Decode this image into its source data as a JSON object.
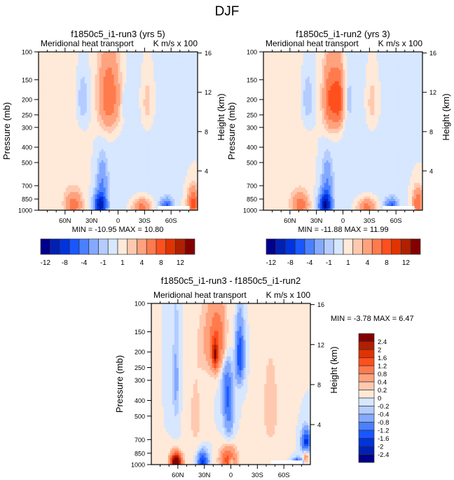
{
  "figure_title": "DJF",
  "chart_data": [
    {
      "type": "heatmap",
      "id": "run3",
      "title": "f1850c5_i1-run3 (yrs 5)",
      "left_label": "Meridional heat transport",
      "right_label": "K m/s x 100",
      "ylabel": "Pressure (mb)",
      "ylabel_right": "Height (km)",
      "x_ticks": [
        "60N",
        "30N",
        "0",
        "30S",
        "60S"
      ],
      "x_tick_values": [
        60,
        30,
        0,
        -30,
        -60
      ],
      "xlim": [
        90,
        -90
      ],
      "y_ticks": [
        "100",
        "150",
        "200",
        "250",
        "300",
        "400",
        "500",
        "700",
        "850",
        "1000"
      ],
      "y_tick_values": [
        100,
        150,
        200,
        250,
        300,
        400,
        500,
        700,
        850,
        1000
      ],
      "ylim": [
        1000,
        100
      ],
      "y_right_ticks": [
        "4",
        "8",
        "12",
        "16"
      ],
      "stats": "MIN = -10.95  MAX =  10.80",
      "min": -10.95,
      "max": 10.8,
      "colorbar": {
        "orientation": "horizontal",
        "labels": [
          "-12",
          "-8",
          "-4",
          "-1",
          "1",
          "4",
          "8",
          "12"
        ],
        "levels": [
          -12,
          -10,
          -8,
          -6,
          -4,
          -2,
          -1,
          0,
          1,
          2,
          4,
          6,
          8,
          10,
          12
        ]
      },
      "features": [
        {
          "lat": 10,
          "p": 190,
          "value": 6,
          "wlat": 12,
          "wp": 110
        },
        {
          "lat": 40,
          "p": 200,
          "value": -2,
          "wlat": 7,
          "wp": 80
        },
        {
          "lat": -33,
          "p": 210,
          "value": 1.8,
          "wlat": 7,
          "wp": 90
        },
        {
          "lat": -7,
          "p": 210,
          "value": -1.5,
          "wlat": 2.5,
          "wp": 40
        },
        {
          "lat": 20,
          "p": 930,
          "value": -11,
          "wlat": 7,
          "wp": 160
        },
        {
          "lat": 18,
          "p": 650,
          "value": -3.5,
          "wlat": 6,
          "wp": 200
        },
        {
          "lat": 50,
          "p": 930,
          "value": 5,
          "wlat": 9,
          "wp": 160
        },
        {
          "lat": -27,
          "p": 960,
          "value": 5,
          "wlat": 10,
          "wp": 120
        },
        {
          "lat": -55,
          "p": 960,
          "value": -7,
          "wlat": 7,
          "wp": 110
        },
        {
          "lat": -85,
          "p": 900,
          "value": 7,
          "wlat": 6,
          "wp": 180
        },
        {
          "lat": 60,
          "p": 450,
          "value": 0.7,
          "wlat": 25,
          "wp": 600
        },
        {
          "lat": -20,
          "p": 500,
          "value": -0.6,
          "wlat": 40,
          "wp": 500
        }
      ]
    },
    {
      "type": "heatmap",
      "id": "run2",
      "title": "f1850c5_i1-run2 (yrs 3)",
      "left_label": "Meridional heat transport",
      "right_label": "K m/s x 100",
      "ylabel": "Pressure (mb)",
      "ylabel_right": "Height (km)",
      "x_ticks": [
        "60N",
        "30N",
        "0",
        "30S",
        "60S"
      ],
      "x_tick_values": [
        60,
        30,
        0,
        -30,
        -60
      ],
      "xlim": [
        90,
        -90
      ],
      "y_ticks": [
        "100",
        "150",
        "200",
        "250",
        "300",
        "400",
        "500",
        "700",
        "850",
        "1000"
      ],
      "y_tick_values": [
        100,
        150,
        200,
        250,
        300,
        400,
        500,
        700,
        850,
        1000
      ],
      "ylim": [
        1000,
        100
      ],
      "y_right_ticks": [
        "4",
        "8",
        "12",
        "16"
      ],
      "stats": "MIN = -11.88  MAX =  11.99",
      "min": -11.88,
      "max": 11.99,
      "colorbar": {
        "orientation": "horizontal",
        "labels": [
          "-12",
          "-8",
          "-4",
          "-1",
          "1",
          "4",
          "8",
          "12"
        ],
        "levels": [
          -12,
          -10,
          -8,
          -6,
          -4,
          -2,
          -1,
          0,
          1,
          2,
          4,
          6,
          8,
          10,
          12
        ]
      },
      "features": [
        {
          "lat": 13,
          "p": 200,
          "value": 7,
          "wlat": 9,
          "wp": 100
        },
        {
          "lat": 4,
          "p": 200,
          "value": 5,
          "wlat": 5,
          "wp": 90
        },
        {
          "lat": 40,
          "p": 200,
          "value": -2,
          "wlat": 7,
          "wp": 80
        },
        {
          "lat": -33,
          "p": 210,
          "value": 1.8,
          "wlat": 7,
          "wp": 90
        },
        {
          "lat": -7,
          "p": 200,
          "value": -1.5,
          "wlat": 2.5,
          "wp": 50
        },
        {
          "lat": 20,
          "p": 930,
          "value": -12,
          "wlat": 7,
          "wp": 160
        },
        {
          "lat": 18,
          "p": 650,
          "value": -3.5,
          "wlat": 6,
          "wp": 200
        },
        {
          "lat": 48,
          "p": 930,
          "value": 5,
          "wlat": 9,
          "wp": 150
        },
        {
          "lat": -27,
          "p": 960,
          "value": 5,
          "wlat": 10,
          "wp": 120
        },
        {
          "lat": -55,
          "p": 960,
          "value": -7,
          "wlat": 7,
          "wp": 110
        },
        {
          "lat": -85,
          "p": 900,
          "value": 6,
          "wlat": 6,
          "wp": 180
        },
        {
          "lat": 60,
          "p": 450,
          "value": 0.7,
          "wlat": 25,
          "wp": 600
        },
        {
          "lat": -20,
          "p": 500,
          "value": -0.6,
          "wlat": 40,
          "wp": 500
        }
      ]
    },
    {
      "type": "heatmap",
      "id": "diff",
      "title": "f1850c5_i1-run3 - f1850c5_i1-run2",
      "left_label": "Meridional heat transport",
      "right_label": "K m/s x 100",
      "ylabel": "Pressure (mb)",
      "ylabel_right": "Height (km)",
      "x_ticks": [
        "60N",
        "30N",
        "0",
        "30S",
        "60S"
      ],
      "x_tick_values": [
        60,
        30,
        0,
        -30,
        -60
      ],
      "xlim": [
        90,
        -90
      ],
      "y_ticks": [
        "100",
        "150",
        "200",
        "250",
        "300",
        "400",
        "500",
        "700",
        "850",
        "1000"
      ],
      "y_tick_values": [
        100,
        150,
        200,
        250,
        300,
        400,
        500,
        700,
        850,
        1000
      ],
      "ylim": [
        1000,
        100
      ],
      "y_right_ticks": [
        "4",
        "8",
        "12",
        "16"
      ],
      "stats": "MIN =  -3.78  MAX =   6.47",
      "min": -3.78,
      "max": 6.47,
      "colorbar": {
        "orientation": "vertical",
        "labels": [
          "2.4",
          "2",
          "1.6",
          "1.2",
          "0.8",
          "0.4",
          "0.2",
          "0",
          "-0.2",
          "-0.4",
          "-0.8",
          "-1.2",
          "-1.6",
          "-2",
          "-2.4"
        ],
        "levels": [
          -2.4,
          -2,
          -1.6,
          -1.2,
          -0.8,
          -0.4,
          -0.2,
          0,
          0.2,
          0.4,
          0.8,
          1.2,
          1.6,
          2,
          2.4
        ]
      },
      "features": [
        {
          "lat": 15,
          "p": 170,
          "value": 1.2,
          "wlat": 14,
          "wp": 90
        },
        {
          "lat": 18,
          "p": 210,
          "value": 1.6,
          "wlat": 3,
          "wp": 40
        },
        {
          "lat": -10,
          "p": 210,
          "value": -1.6,
          "wlat": 5,
          "wp": 90
        },
        {
          "lat": 5,
          "p": 330,
          "value": -0.9,
          "wlat": 6,
          "wp": 180
        },
        {
          "lat": 2,
          "p": 480,
          "value": -0.7,
          "wlat": 5,
          "wp": 220
        },
        {
          "lat": 62,
          "p": 300,
          "value": -0.5,
          "wlat": 4,
          "wp": 220
        },
        {
          "lat": 62,
          "p": 970,
          "value": 3.5,
          "wlat": 6,
          "wp": 120
        },
        {
          "lat": 32,
          "p": 960,
          "value": -1.7,
          "wlat": 6,
          "wp": 140
        },
        {
          "lat": 3,
          "p": 930,
          "value": 1.4,
          "wlat": 9,
          "wp": 160
        },
        {
          "lat": 0,
          "p": 970,
          "value": -1.2,
          "wlat": 1.8,
          "wp": 60
        },
        {
          "lat": -75,
          "p": 980,
          "value": -2.2,
          "wlat": 5,
          "wp": 60
        },
        {
          "lat": -85,
          "p": 720,
          "value": -1.8,
          "wlat": 5,
          "wp": 120
        },
        {
          "lat": -85,
          "p": 880,
          "value": 0.8,
          "wlat": 3,
          "wp": 80
        },
        {
          "lat": 40,
          "p": 500,
          "value": 0.25,
          "wlat": 10,
          "wp": 400
        },
        {
          "lat": -45,
          "p": 450,
          "value": 0.25,
          "wlat": 15,
          "wp": 500
        }
      ]
    }
  ],
  "palette": [
    "#00008b",
    "#0020b4",
    "#0033dd",
    "#1a56ff",
    "#4a80ff",
    "#84a9ff",
    "#b4ccff",
    "#d6e7ff",
    "#ffe9d8",
    "#ffc9b0",
    "#ffa27e",
    "#ff7a4d",
    "#ff4f1e",
    "#e03300",
    "#b02000",
    "#840000"
  ]
}
